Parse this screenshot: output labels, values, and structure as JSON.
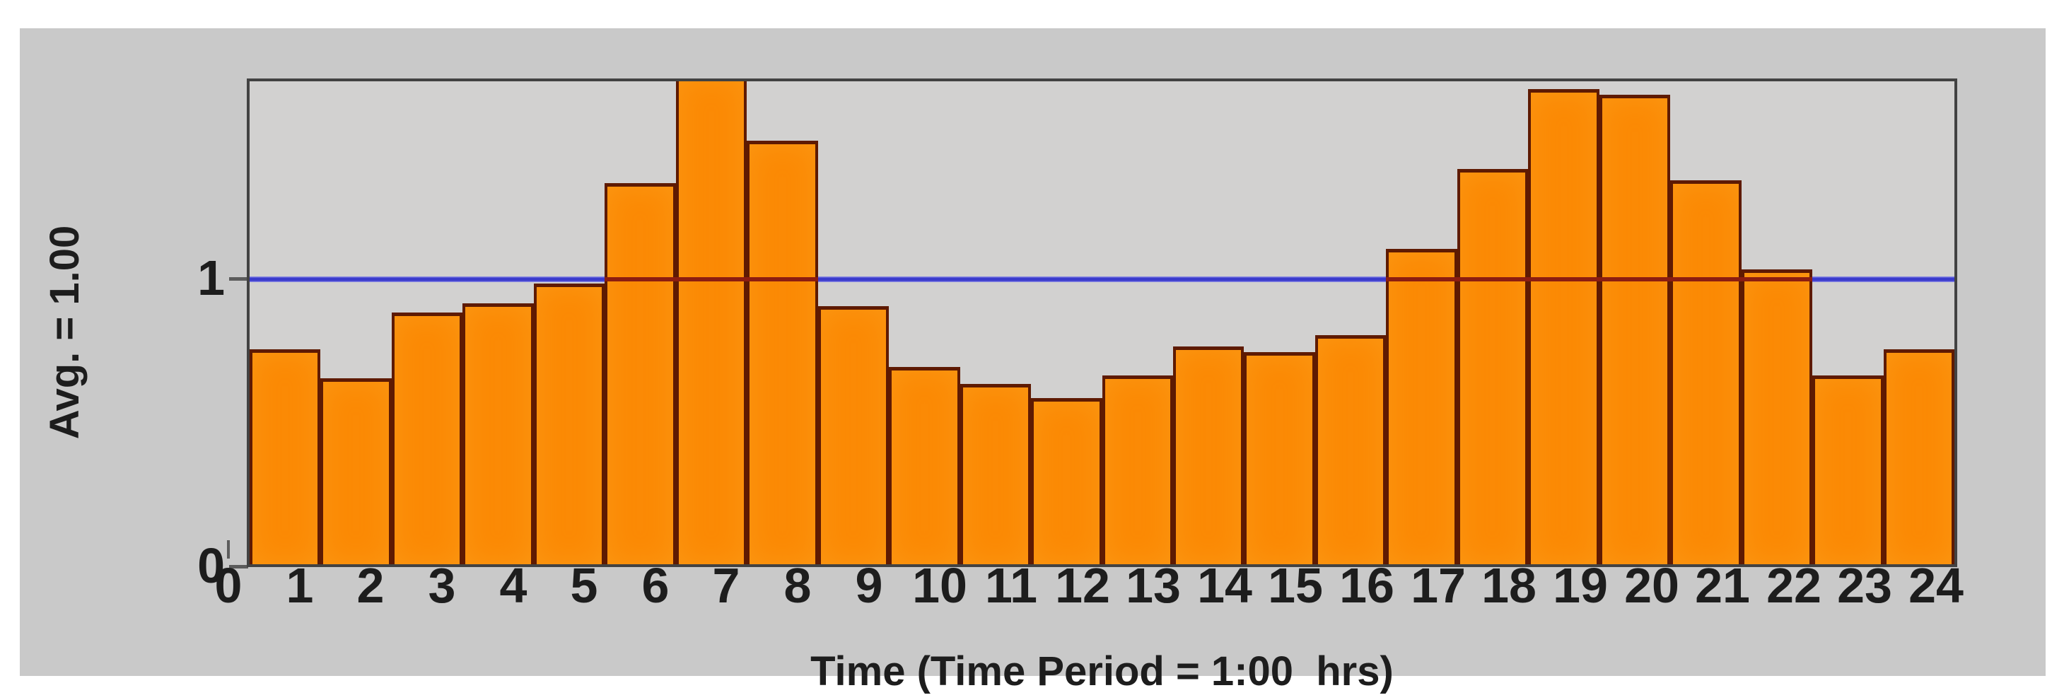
{
  "chart_data": {
    "type": "bar",
    "title": "",
    "xlabel": "Time (Time Period = 1:00  hrs)",
    "ylabel": "Avg. = 1.00",
    "x_tick_labels": [
      "0",
      "1",
      "2",
      "3",
      "4",
      "5",
      "6",
      "7",
      "8",
      "9",
      "10",
      "11",
      "12",
      "13",
      "14",
      "15",
      "16",
      "17",
      "18",
      "19",
      "20",
      "21",
      "22",
      "23",
      "24"
    ],
    "y_tick_labels": [
      "0",
      "1"
    ],
    "categories": [
      "0-1",
      "1-2",
      "2-3",
      "3-4",
      "4-5",
      "5-6",
      "6-7",
      "7-8",
      "8-9",
      "9-10",
      "10-11",
      "11-12",
      "12-13",
      "13-14",
      "14-15",
      "15-16",
      "16-17",
      "17-18",
      "18-19",
      "19-20",
      "20-21",
      "21-22",
      "22-23",
      "23-24"
    ],
    "values": [
      0.75,
      0.65,
      0.88,
      0.91,
      0.98,
      1.33,
      1.71,
      1.48,
      0.9,
      0.69,
      0.63,
      0.58,
      0.66,
      0.76,
      0.74,
      0.8,
      1.1,
      1.38,
      1.66,
      1.64,
      1.34,
      1.03,
      0.66,
      0.75
    ],
    "avg_line_value": 1.0,
    "time_period_hours": "1:00",
    "ylim": [
      0,
      1.69
    ],
    "xlim": [
      0,
      24
    ],
    "grid": "off",
    "legend": "none",
    "note": "Bar at hour 6-7 is clipped by the plot top border; blue average line renders dark red where it crosses bars taller than 1.0",
    "colors": {
      "bar_fill": "#fb8a05",
      "bar_border": "#5e1a02",
      "avg_line_blue": "#3a3acc",
      "avg_line_over_bars": "#8c1d10",
      "frame": "#424242",
      "panel_background": "#c9c9c9",
      "plot_background": "#d2d1d0",
      "text": "#1d1d1d",
      "page_background": "#ffffff"
    }
  }
}
